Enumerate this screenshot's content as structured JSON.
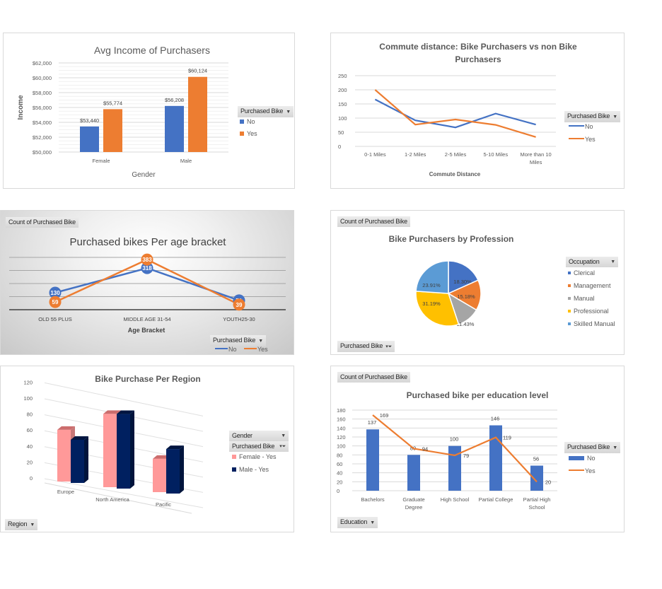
{
  "colors": {
    "blue": "#4472c4",
    "orange": "#ed7d31",
    "gray": "#a5a5a5",
    "yellow": "#ffc000",
    "lightblue": "#5b9bd5",
    "pink": "#ff9999",
    "navy": "#002060"
  },
  "chart_data": [
    {
      "type": "bar",
      "title": "Avg Income of Purchasers",
      "xlabel": "Gender",
      "ylabel": "Income",
      "categories": [
        "Female",
        "Male"
      ],
      "series": [
        {
          "name": "No",
          "values": [
            53440,
            56208
          ],
          "labels": [
            "$53,440",
            "$56,208"
          ]
        },
        {
          "name": "Yes",
          "values": [
            55774,
            60124
          ],
          "labels": [
            "$55,774",
            "$60,124"
          ]
        }
      ],
      "ylim": [
        50000,
        62000
      ],
      "yticks": [
        "$50,000",
        "$52,000",
        "$54,000",
        "$56,000",
        "$58,000",
        "$60,000",
        "$62,000"
      ],
      "grid": true,
      "legend_title": "Purchased Bike",
      "legend": "right"
    },
    {
      "type": "line",
      "title": "Commute distance: Bike Purchasers vs non Bike Purchasers",
      "title_lines": [
        "Commute distance: Bike Purchasers vs non Bike",
        "Purchasers"
      ],
      "xlabel": "Commute Distance",
      "ylabel": "",
      "categories": [
        "0-1 Miles",
        "1-2 Miles",
        "2-5 Miles",
        "5-10 Miles",
        "More than 10 Miles"
      ],
      "category_lines": [
        [
          "0-1 Miles"
        ],
        [
          "1-2 Miles"
        ],
        [
          "2-5 Miles"
        ],
        [
          "5-10 Miles"
        ],
        [
          "More than 10",
          "Miles"
        ]
      ],
      "series": [
        {
          "name": "No",
          "values": [
            166,
            92,
            67,
            116,
            77
          ]
        },
        {
          "name": "Yes",
          "values": [
            200,
            77,
            95,
            76,
            33
          ]
        }
      ],
      "ylim": [
        0,
        250
      ],
      "yticks": [
        "0",
        "50",
        "100",
        "150",
        "200",
        "250"
      ],
      "grid": true,
      "legend_title": "Purchased Bike",
      "legend": "right"
    },
    {
      "type": "line",
      "title": "Purchased bikes Per age bracket",
      "field_button": "Count of Purchased Bike",
      "xlabel": "Age Bracket",
      "categories": [
        "OLD 55 PLUS",
        "MIDDLE AGE 31-54",
        "YOUTH25-30"
      ],
      "series": [
        {
          "name": "No",
          "values": [
            130,
            318,
            71
          ]
        },
        {
          "name": "Yes",
          "values": [
            59,
            383,
            39
          ]
        }
      ],
      "ylim": [
        0,
        450
      ],
      "grid": true,
      "legend_title": "Purchased Bike",
      "legend": "bottom-right"
    },
    {
      "type": "pie",
      "title": "Bike Purchasers by Profession",
      "field_button": "Count of Purchased Bike",
      "filter_button": "Purchased Bike",
      "legend_title": "Occupation",
      "legend": "right",
      "categories": [
        "Clerical",
        "Management",
        "Manual",
        "Professional",
        "Skilled Manual"
      ],
      "values": [
        18.3,
        15.18,
        11.43,
        31.19,
        23.91
      ],
      "labels": [
        "18.30%",
        "15.18%",
        "11.43%",
        "31.19%",
        "23.91%"
      ]
    },
    {
      "type": "bar",
      "subtype": "3d-clustered-column",
      "title": "Bike Purchase Per Region",
      "categories": [
        "Europe",
        "North America",
        "Pacific"
      ],
      "series": [
        {
          "name": "Female - Yes",
          "values": [
            79,
            112,
            51
          ]
        },
        {
          "name": "Male - Yes",
          "values": [
            66,
            114,
            68
          ]
        }
      ],
      "ylim": [
        0,
        120
      ],
      "yticks": [
        "0",
        "20",
        "40",
        "60",
        "80",
        "100",
        "120"
      ],
      "grid": true,
      "legend_fields": [
        "Gender",
        "Purchased Bike"
      ],
      "axis_button": "Region",
      "legend": "right"
    },
    {
      "type": "bar",
      "subtype": "combo-bar-line",
      "title": "Purchased  bike per education level",
      "field_button": "Count of Purchased Bike",
      "axis_button": "Education",
      "categories": [
        "Bachelors",
        "Graduate Degree",
        "High School",
        "Partial College",
        "Partial High School"
      ],
      "category_lines": [
        [
          "Bachelors"
        ],
        [
          "Graduate",
          "Degree"
        ],
        [
          "High School"
        ],
        [
          "Partial College"
        ],
        [
          "Partial High",
          "School"
        ]
      ],
      "series": [
        {
          "name": "No",
          "kind": "bar",
          "values": [
            137,
            80,
            100,
            146,
            56
          ]
        },
        {
          "name": "Yes",
          "kind": "line",
          "values": [
            169,
            94,
            79,
            119,
            20
          ]
        }
      ],
      "ylim": [
        0,
        180
      ],
      "yticks": [
        "0",
        "20",
        "40",
        "60",
        "80",
        "100",
        "120",
        "140",
        "160",
        "180"
      ],
      "grid": true,
      "legend_title": "Purchased Bike",
      "legend": "right"
    }
  ],
  "ui": {
    "income": {
      "legend_title": "Purchased Bike",
      "legend_no": "No",
      "legend_yes": "Yes"
    },
    "commute": {
      "legend_title": "Purchased Bike",
      "legend_no": "No",
      "legend_yes": "Yes"
    },
    "age": {
      "field": "Count of Purchased Bike",
      "legend_title": "Purchased Bike",
      "legend_no": "No",
      "legend_yes": "Yes"
    },
    "pie": {
      "field": "Count of Purchased Bike",
      "legend_title": "Occupation",
      "filter": "Purchased Bike"
    },
    "region": {
      "gender": "Gender",
      "purchased": "Purchased Bike",
      "axis": "Region",
      "legend_f": "Female - Yes",
      "legend_m": "Male - Yes"
    },
    "edu": {
      "field": "Count of Purchased Bike",
      "legend_title": "Purchased Bike",
      "legend_no": "No",
      "legend_yes": "Yes",
      "axis": "Education"
    }
  }
}
